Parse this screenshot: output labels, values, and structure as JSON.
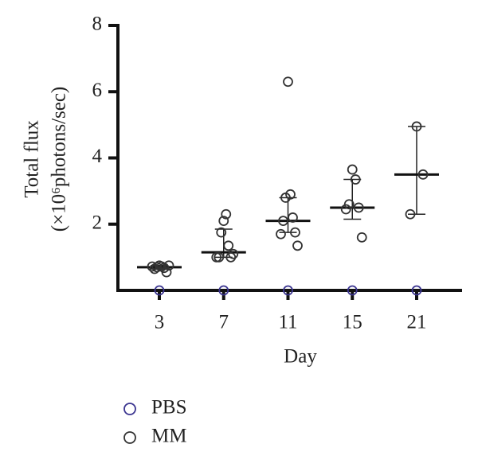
{
  "chart_data": {
    "type": "dot",
    "x_label": "Day",
    "y_label": [
      "Total flux",
      "(×10⁶photons/sec)"
    ],
    "categories": [
      "3",
      "7",
      "11",
      "15",
      "21"
    ],
    "ylim": [
      0,
      8
    ],
    "yticks": [
      2,
      4,
      6,
      8
    ],
    "series": [
      {
        "name": "PBS",
        "color": "#3b3590",
        "values": [
          [
            0
          ],
          [
            0
          ],
          [
            0
          ],
          [
            0
          ],
          [
            0
          ]
        ]
      },
      {
        "name": "MM",
        "color": "#333333",
        "values": [
          [
            0.75,
            0.72,
            0.7,
            0.68,
            0.65,
            0.55,
            0.72,
            0.75
          ],
          [
            2.1,
            2.3,
            1.75,
            1.35,
            1.0,
            1.0,
            1.0,
            1.1
          ],
          [
            6.3,
            2.9,
            2.8,
            2.2,
            2.1,
            1.75,
            1.7,
            1.35
          ],
          [
            3.65,
            3.35,
            2.6,
            2.5,
            2.45,
            1.6
          ],
          [
            4.95,
            3.5,
            2.3
          ]
        ],
        "median": [
          0.7,
          1.15,
          2.1,
          2.5,
          3.5
        ],
        "lower": [
          0.65,
          1.0,
          1.75,
          2.15,
          2.3
        ],
        "upper": [
          0.75,
          1.85,
          2.8,
          3.35,
          4.95
        ]
      }
    ]
  }
}
